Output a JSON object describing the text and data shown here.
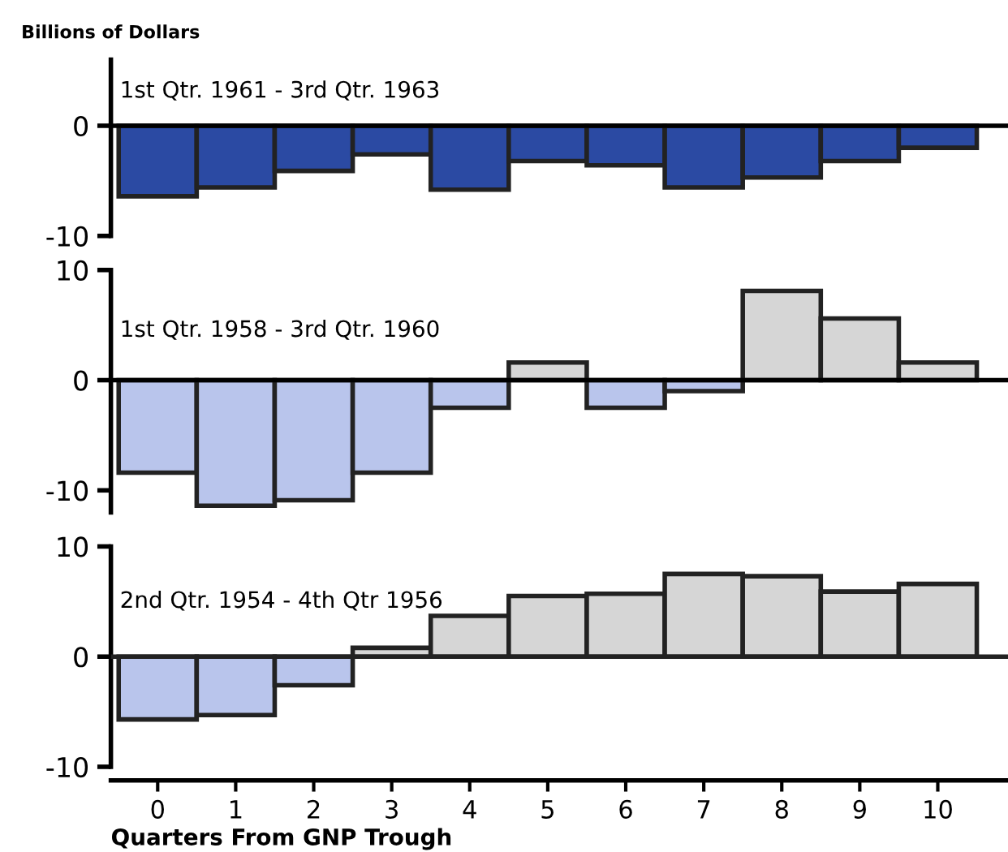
{
  "chart_data": [
    {
      "type": "bar",
      "title": "1st Qtr. 1961 - 3rd Qtr. 1963",
      "ylabel": "Billions of Dollars",
      "categories": [
        "0",
        "1",
        "2",
        "3",
        "4",
        "5",
        "6",
        "7",
        "8",
        "9",
        "10"
      ],
      "values": [
        -6.4,
        -5.6,
        -4.1,
        -2.6,
        -5.8,
        -3.2,
        -3.6,
        -5.6,
        -4.7,
        -3.2,
        -2.0
      ],
      "colors": [
        "#2b4aa3",
        "#2b4aa3",
        "#2b4aa3",
        "#2b4aa3",
        "#2b4aa3",
        "#2b4aa3",
        "#2b4aa3",
        "#2b4aa3",
        "#2b4aa3",
        "#2b4aa3",
        "#2b4aa3"
      ],
      "ylim": [
        -10,
        6
      ],
      "yticks": [
        -10,
        0
      ],
      "tick_labels": "y"
    },
    {
      "type": "bar",
      "title": "1st Qtr. 1958 - 3rd Qtr. 1960",
      "categories": [
        "0",
        "1",
        "2",
        "3",
        "4",
        "5",
        "6",
        "7",
        "8",
        "9",
        "10"
      ],
      "values": [
        -8.4,
        -11.4,
        -10.9,
        -8.4,
        -2.5,
        1.6,
        -2.5,
        -1.0,
        8.1,
        5.6,
        1.6
      ],
      "colors": [
        "#b9c5ec",
        "#b9c5ec",
        "#b9c5ec",
        "#b9c5ec",
        "#b9c5ec",
        "#d6d6d6",
        "#b9c5ec",
        "#b9c5ec",
        "#d6d6d6",
        "#d6d6d6",
        "#d6d6d6"
      ],
      "ylim": [
        -12,
        10
      ],
      "yticks": [
        -10,
        0,
        10
      ],
      "tick_labels": "y"
    },
    {
      "type": "bar",
      "title": "2nd Qtr. 1954 - 4th Qtr 1956",
      "xlabel": "Quarters From GNP Trough",
      "categories": [
        "0",
        "1",
        "2",
        "3",
        "4",
        "5",
        "6",
        "7",
        "8",
        "9",
        "10"
      ],
      "values": [
        -5.7,
        -5.3,
        -2.6,
        0.8,
        3.7,
        5.5,
        5.7,
        7.5,
        7.3,
        5.9,
        6.6
      ],
      "colors": [
        "#b9c5ec",
        "#b9c5ec",
        "#b9c5ec",
        "#d6d6d6",
        "#d6d6d6",
        "#d6d6d6",
        "#d6d6d6",
        "#d6d6d6",
        "#d6d6d6",
        "#d6d6d6",
        "#d6d6d6"
      ],
      "ylim": [
        -10,
        10
      ],
      "yticks": [
        -10,
        0,
        10
      ],
      "ref_lines": [
        {
          "axis": "y",
          "value": 0
        }
      ]
    }
  ]
}
